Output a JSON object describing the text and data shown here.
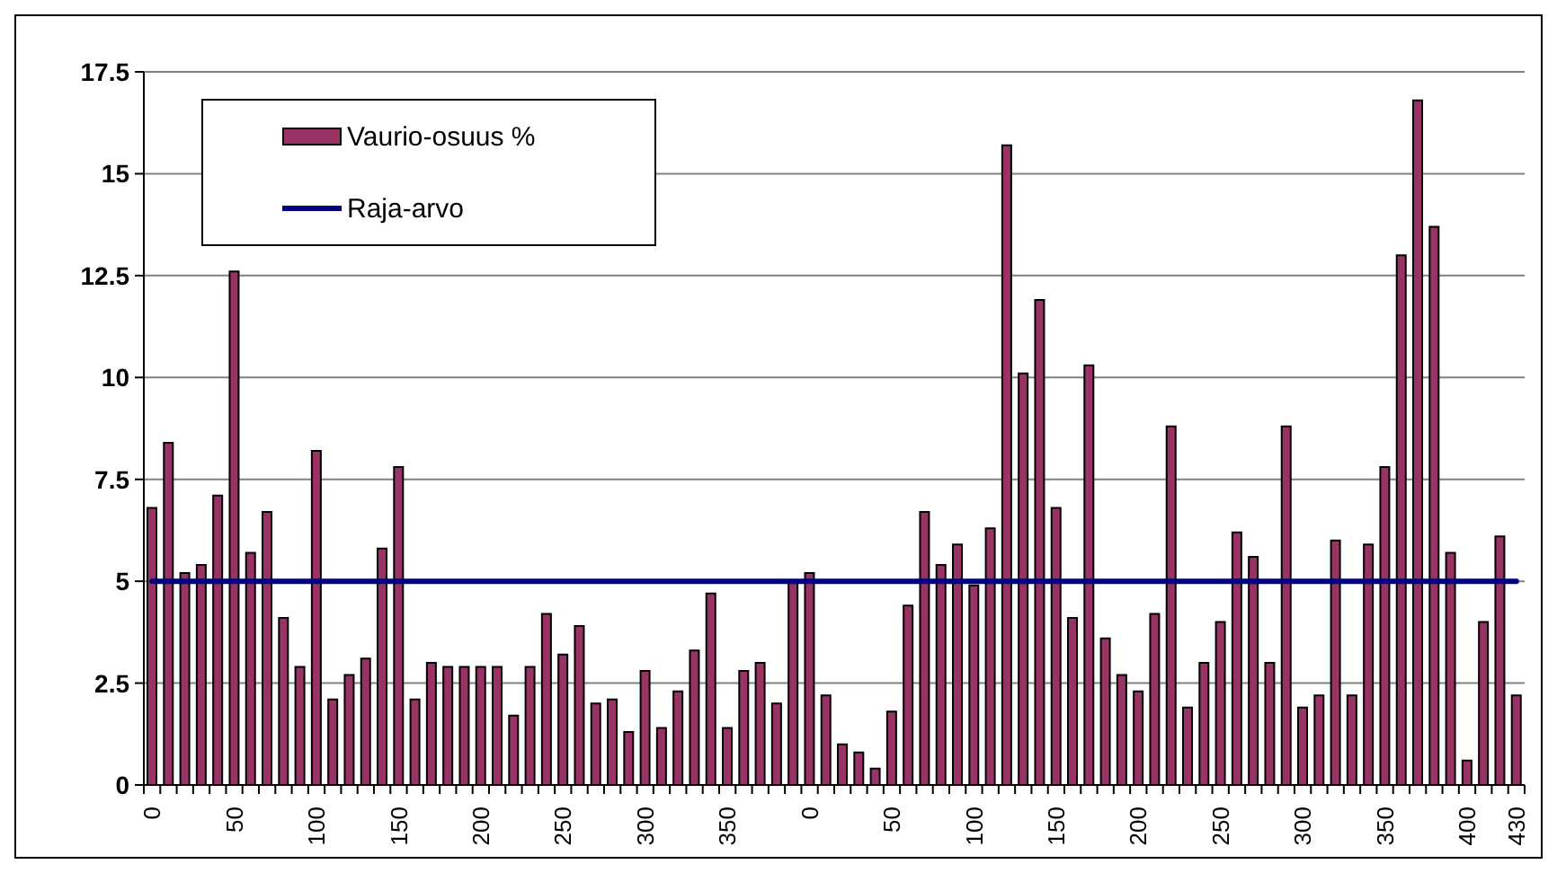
{
  "chart_data": {
    "type": "bar",
    "categories": [
      "0",
      null,
      null,
      null,
      null,
      "50",
      null,
      null,
      null,
      null,
      "100",
      null,
      null,
      null,
      null,
      "150",
      null,
      null,
      null,
      null,
      "200",
      null,
      null,
      null,
      null,
      "250",
      null,
      null,
      null,
      null,
      "300",
      null,
      null,
      null,
      null,
      "350",
      null,
      null,
      null,
      null,
      "0",
      null,
      null,
      null,
      null,
      "50",
      null,
      null,
      null,
      null,
      "100",
      null,
      null,
      null,
      null,
      "150",
      null,
      null,
      null,
      null,
      "200",
      null,
      null,
      null,
      null,
      "250",
      null,
      null,
      null,
      null,
      "300",
      null,
      null,
      null,
      null,
      "350",
      null,
      null,
      null,
      null,
      "400",
      null,
      null,
      "430"
    ],
    "series": [
      {
        "name": "Vaurio-osuus %",
        "color": "#993366",
        "values": [
          6.8,
          8.4,
          5.2,
          5.4,
          7.1,
          12.6,
          5.7,
          6.7,
          4.1,
          2.9,
          8.2,
          2.1,
          2.7,
          3.1,
          5.8,
          7.8,
          2.1,
          3.0,
          2.9,
          2.9,
          2.9,
          2.9,
          1.7,
          2.9,
          4.2,
          3.2,
          3.9,
          2.0,
          2.1,
          1.3,
          2.8,
          1.4,
          2.3,
          3.3,
          4.7,
          1.4,
          2.8,
          3.0,
          2.0,
          5.0,
          5.2,
          2.2,
          1.0,
          0.8,
          0.4,
          1.8,
          4.4,
          6.7,
          5.4,
          5.9,
          4.9,
          6.3,
          15.7,
          10.1,
          11.9,
          6.8,
          4.1,
          10.3,
          3.6,
          2.7,
          2.3,
          4.2,
          8.8,
          1.9,
          3.0,
          4.0,
          6.2,
          5.6,
          3.0,
          8.8,
          1.9,
          2.2,
          6.0,
          2.2,
          5.9,
          7.8,
          13.0,
          16.8,
          13.7,
          5.7,
          0.6,
          4.0,
          6.1,
          2.2
        ]
      },
      {
        "name": "Raja-arvo",
        "type": "line",
        "color": "#000080",
        "marker": "none",
        "values": [
          5,
          5,
          5,
          5,
          5,
          5,
          5,
          5,
          5,
          5,
          5,
          5,
          5,
          5,
          5,
          5,
          5,
          5,
          5,
          5,
          5,
          5,
          5,
          5,
          5,
          5,
          5,
          5,
          5,
          5,
          5,
          5,
          5,
          5,
          5,
          5,
          5,
          5,
          5,
          5,
          5,
          5,
          5,
          5,
          5,
          5,
          5,
          5,
          5,
          5,
          5,
          5,
          5,
          5,
          5,
          5,
          5,
          5,
          5,
          5,
          5,
          5,
          5,
          5,
          5,
          5,
          5,
          5,
          5,
          5,
          5,
          5,
          5,
          5,
          5,
          5,
          5,
          5,
          5,
          5,
          5,
          5,
          5,
          5
        ]
      }
    ],
    "ylim": [
      0,
      17.5
    ],
    "yticks": [
      0,
      2.5,
      5,
      7.5,
      10,
      12.5,
      15,
      17.5
    ],
    "grid": "y",
    "legend": "top left"
  }
}
